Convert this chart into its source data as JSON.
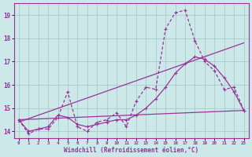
{
  "bg_color": "#cce8e8",
  "grid_color": "#aacccc",
  "line_color": "#993399",
  "xlabel": "Windchill (Refroidissement éolien,°C)",
  "ylim": [
    13.7,
    19.5
  ],
  "xlim": [
    -0.5,
    23.5
  ],
  "yticks": [
    14,
    15,
    16,
    17,
    18,
    19
  ],
  "xticks": [
    0,
    1,
    2,
    3,
    4,
    5,
    6,
    7,
    8,
    9,
    10,
    11,
    12,
    13,
    14,
    15,
    16,
    17,
    18,
    19,
    20,
    21,
    22,
    23
  ],
  "series1_x": [
    0,
    1,
    2,
    3,
    4,
    5,
    6,
    7,
    8,
    9,
    10,
    11,
    12,
    13,
    14,
    15,
    16,
    17,
    18,
    19,
    20,
    21,
    22,
    23
  ],
  "series1_y": [
    14.5,
    13.9,
    14.1,
    14.1,
    14.6,
    15.7,
    14.2,
    14.0,
    14.4,
    14.5,
    14.8,
    14.2,
    15.3,
    15.9,
    15.8,
    18.4,
    19.1,
    19.2,
    17.9,
    17.0,
    16.6,
    15.8,
    15.9,
    14.9
  ],
  "series2_x": [
    0,
    1,
    2,
    3,
    4,
    5,
    6,
    7,
    8,
    9,
    10,
    11,
    12,
    13,
    14,
    15,
    16,
    17,
    18,
    19,
    20,
    21,
    22,
    23
  ],
  "series2_y": [
    14.5,
    14.0,
    14.1,
    14.2,
    14.7,
    14.6,
    14.3,
    14.2,
    14.3,
    14.4,
    14.5,
    14.5,
    14.7,
    15.0,
    15.4,
    15.9,
    16.5,
    16.9,
    17.2,
    17.1,
    16.8,
    16.3,
    15.7,
    14.9
  ],
  "trend1_x": [
    0,
    23
  ],
  "trend1_y": [
    14.5,
    14.9
  ],
  "trend2_x": [
    0,
    23
  ],
  "trend2_y": [
    14.4,
    17.8
  ]
}
